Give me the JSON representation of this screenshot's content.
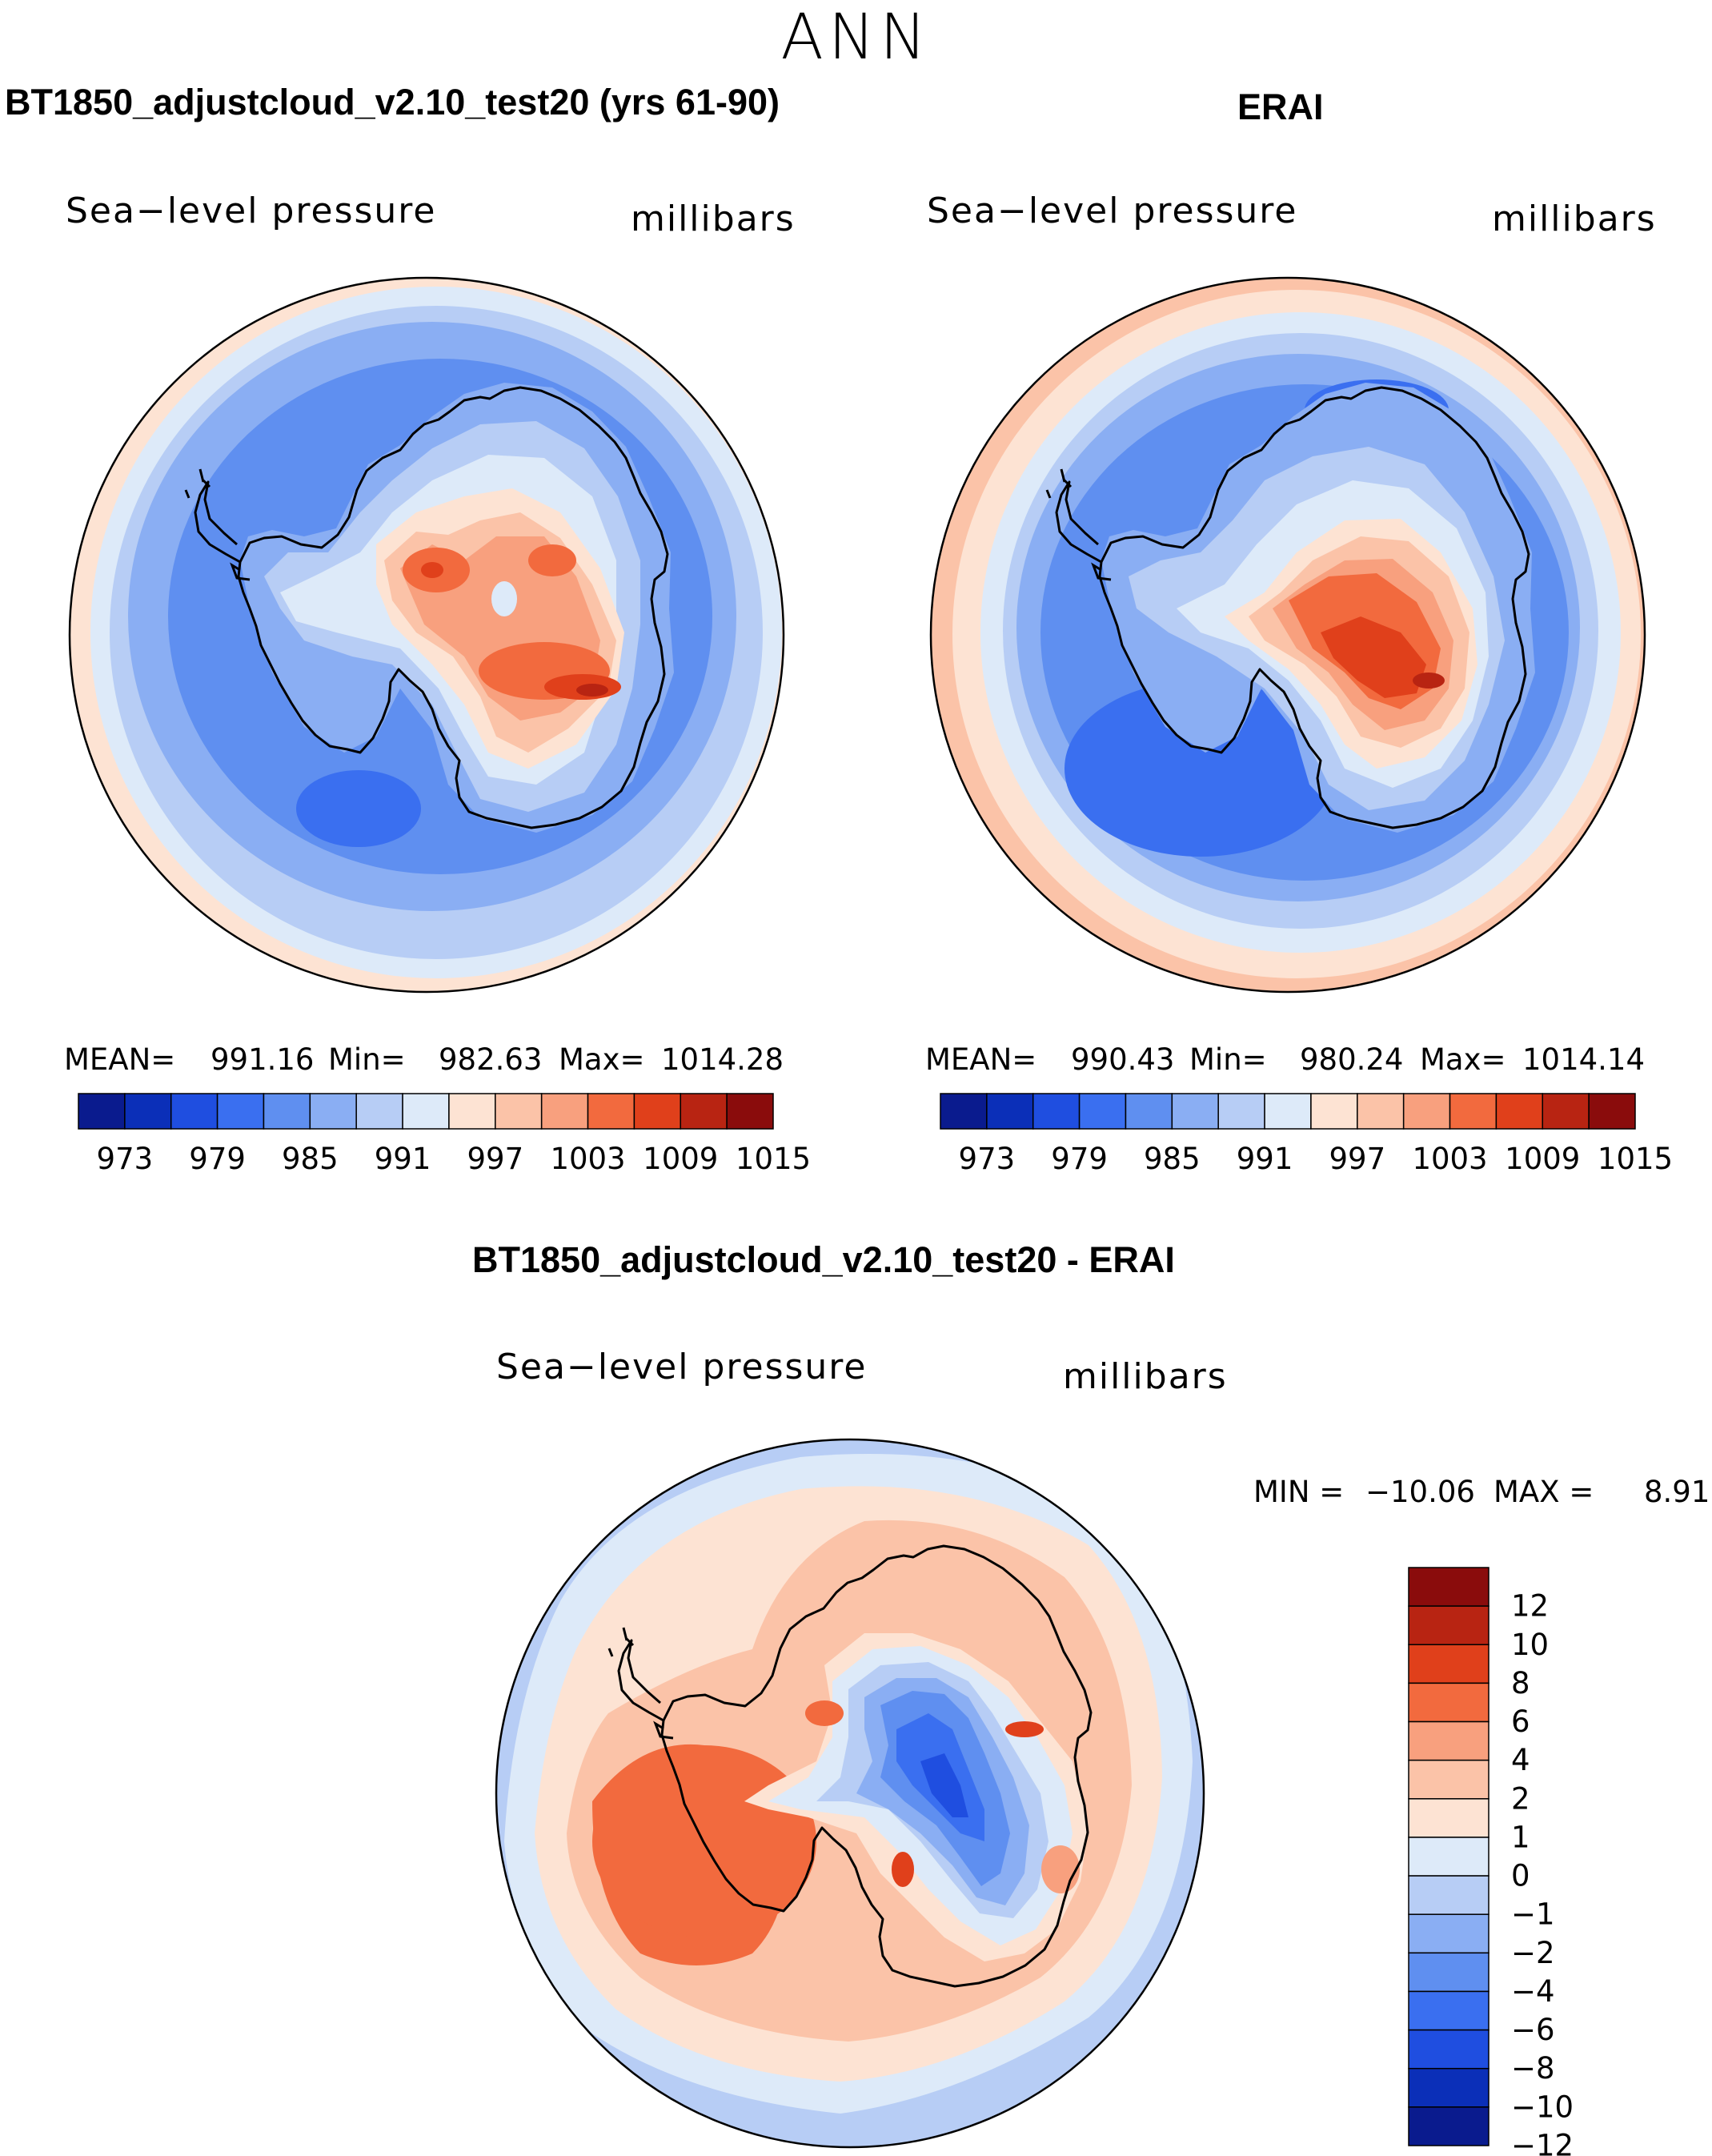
{
  "figure": {
    "season": "ANN"
  },
  "panels": [
    {
      "title": "BT1850_adjustcloud_v2.10_test20 (yrs 61-90)",
      "variable": "Sea−level pressure",
      "units": "millibars",
      "stats": {
        "mean_label": "MEAN=",
        "mean": "991.16",
        "min_label": "Min=",
        "min": "982.63",
        "max_label": "Max=",
        "max": "1014.28"
      },
      "colorbar": {
        "colors": [
          "#0a1b8e",
          "#0b2fb8",
          "#1f4ee0",
          "#3a6ff0",
          "#5f8ff0",
          "#8aaef3",
          "#b7cdf5",
          "#ddeaf9",
          "#fde3d3",
          "#fbc3a8",
          "#f8a07e",
          "#f26a3e",
          "#e0401b",
          "#b82412",
          "#8a0c0c"
        ],
        "ticks": [
          "973",
          "979",
          "985",
          "991",
          "997",
          "1003",
          "1009",
          "1015"
        ]
      }
    },
    {
      "title": "ERAI",
      "variable": "Sea−level pressure",
      "units": "millibars",
      "stats": {
        "mean_label": "MEAN=",
        "mean": "990.43",
        "min_label": "Min=",
        "min": "980.24",
        "max_label": "Max=",
        "max": "1014.14"
      },
      "colorbar": {
        "colors": [
          "#0a1b8e",
          "#0b2fb8",
          "#1f4ee0",
          "#3a6ff0",
          "#5f8ff0",
          "#8aaef3",
          "#b7cdf5",
          "#ddeaf9",
          "#fde3d3",
          "#fbc3a8",
          "#f8a07e",
          "#f26a3e",
          "#e0401b",
          "#b82412",
          "#8a0c0c"
        ],
        "ticks": [
          "973",
          "979",
          "985",
          "991",
          "997",
          "1003",
          "1009",
          "1015"
        ]
      }
    },
    {
      "title": "BT1850_adjustcloud_v2.10_test20 - ERAI",
      "variable": "Sea−level pressure",
      "units": "millibars",
      "stats": {
        "min_label": "MIN =",
        "min": "−10.06",
        "max_label": "MAX =",
        "max": "8.91"
      },
      "colorbar": {
        "colors": [
          "#8a0c0c",
          "#b82412",
          "#e0401b",
          "#f26a3e",
          "#f8a07e",
          "#fbc3a8",
          "#fde3d3",
          "#ddeaf9",
          "#b7cdf5",
          "#8aaef3",
          "#5f8ff0",
          "#3a6ff0",
          "#1f4ee0",
          "#0b2fb8",
          "#0a1b8e"
        ],
        "ticks": [
          "12",
          "10",
          "8",
          "6",
          "4",
          "2",
          "1",
          "0",
          "−1",
          "−2",
          "−4",
          "−6",
          "−8",
          "−10",
          "−12"
        ]
      }
    }
  ]
}
